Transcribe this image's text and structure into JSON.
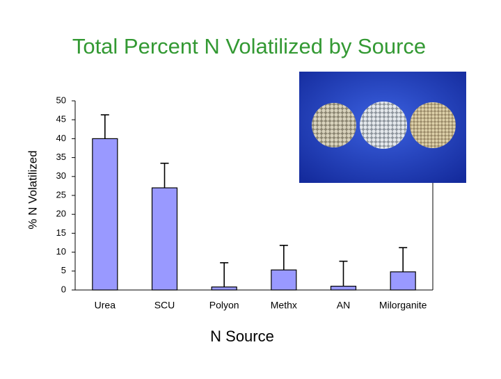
{
  "chart_data": {
    "type": "bar",
    "title": "Total Percent N Volatilized by Source",
    "x_label": "N Source",
    "y_label": "% N Volatilized",
    "categories": [
      "Urea",
      "SCU",
      "Polyon",
      "Methx",
      "AN",
      "Milorganite"
    ],
    "values": [
      40,
      27,
      0.8,
      5.3,
      1,
      4.8
    ],
    "errors": [
      6.3,
      6.5,
      6.4,
      6.5,
      6.6,
      6.4
    ],
    "color": "#9999ff",
    "ylim": [
      0,
      50
    ],
    "yticks": [
      0,
      5,
      10,
      15,
      20,
      25,
      30,
      35,
      40,
      45,
      50
    ]
  }
}
